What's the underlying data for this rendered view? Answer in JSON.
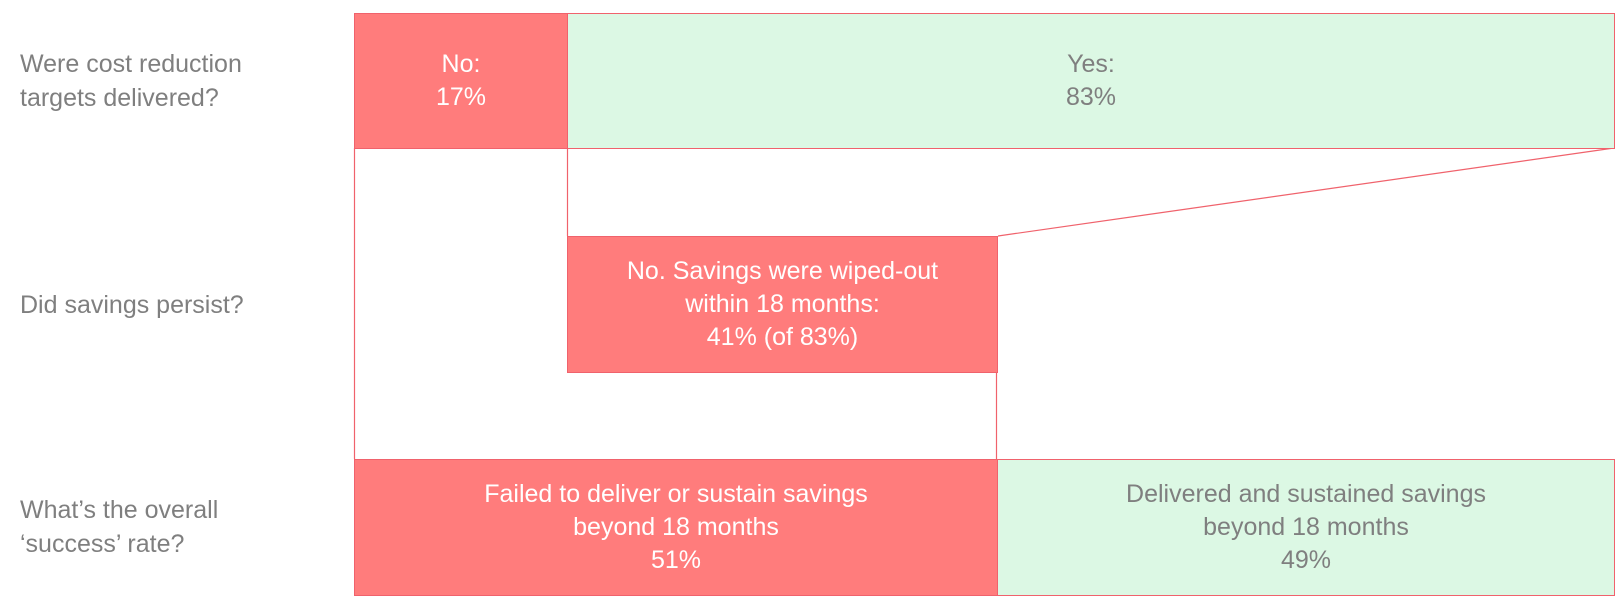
{
  "questions": {
    "q1": {
      "line1": "Were cost reduction",
      "line2": "targets delivered?"
    },
    "q2": {
      "line1": "Did savings persist?"
    },
    "q3": {
      "line1": "What’s the overall",
      "line2": "‘success’ rate?"
    }
  },
  "boxes": {
    "no_delivered": {
      "line1": "No:",
      "line2": "17%"
    },
    "yes_delivered": {
      "line1": "Yes:",
      "line2": "83%"
    },
    "wiped_out": {
      "line1": "No.  Savings were wiped-out",
      "line2": "within 18 months:",
      "line3": "41% (of 83%)"
    },
    "failed": {
      "line1": "Failed to deliver or sustain savings",
      "line2": "beyond 18 months",
      "line3": "51%"
    },
    "succeeded": {
      "line1": "Delivered and sustained savings",
      "line2": "beyond 18 months",
      "line3": "49%"
    }
  },
  "colors": {
    "negative": "#ff7c7c",
    "positive": "#dcf8e4",
    "border": "#f0626c",
    "text_grey": "#7f7f7f"
  }
}
